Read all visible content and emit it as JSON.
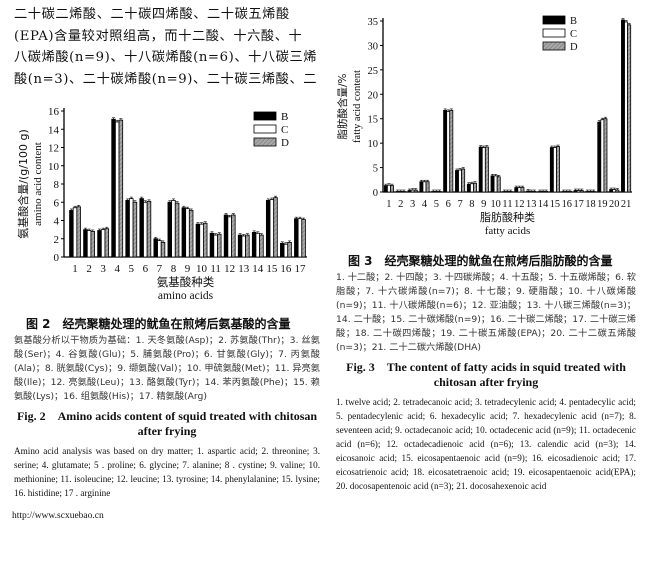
{
  "body_text": [
    "二十碳二烯酸、二十碳四烯酸、二十碳五烯酸",
    "(EPA)含量较对照组高，而十二酸、十六酸、十",
    "八碳烯酸(n=9)、十八碳烯酸(n=6)、十八碳三烯",
    "酸(n=3)、二十碳烯酸(n=9)、二十碳三烯酸、二"
  ],
  "fig2": {
    "caption_cn": "图 2　经壳聚糖处理的鱿鱼在煎烤后氨基酸的含量",
    "note_cn": "氨基酸分析以干物质为基础：1. 天冬氨酸(Asp)；2. 苏氨酸(Thr)；3. 丝氨酸(Ser)；4. 谷氨酸(Glu)；5. 脯氨酸(Pro)；6. 甘氨酸(Gly)；7. 丙氨酸(Ala)；8. 胱氨酸(Cys)；9. 缬氨酸(Val)；10. 甲硫氨酸(Met)；11. 异亮氨酸(Ile)；12. 亮氨酸(Leu)；13. 酪氨酸(Tyr)；14. 苯丙氨酸(Phe)；15. 赖氨酸(Lys)；16. 组氨酸(His)；17. 精氨酸(Arg)",
    "caption_en": "Fig. 2　Amino acids content of squid treated with chitosan after frying",
    "note_en": "Amino acid analysis was based on dry matter; 1. aspartic acid; 2. threonine; 3. serine; 4. glutamate; 5 . proline; 6. glycine; 7. alanine; 8 . cystine; 9. valine; 10. methionine; 11. isoleucine; 12. leucine; 13. tyrosine; 14. phenylalanine; 15. lysine; 16. histidine; 17 . arginine"
  },
  "fig3": {
    "caption_cn": "图 3　经壳聚糖处理的鱿鱼在煎烤后脂肪酸的含量",
    "note_cn": "1. 十二酸；2. 十四酸；3. 十四碳烯酸；4. 十五酸；5. 十五碳烯酸；6. 软脂酸；7. 十六碳烯酸(n=7)；8. 十七酸；9. 硬脂酸；10. 十八碳烯酸(n=9)；11. 十八碳烯酸(n=6)；12. 亚油酸；13. 十八碳三烯酸(n=3)；14. 二十酸；15. 二十碳烯酸(n=9)；16. 二十碳二烯酸；17. 二十碳三烯酸；18. 二十碳四烯酸；19. 二十碳五烯酸(EPA)；20. 二十二碳五烯酸(n=3)；21. 二十二碳六烯酸(DHA)",
    "caption_en": "Fig. 3　The content of fatty acids in squid treated with chitosan after frying",
    "note_en": "1. twelve acid; 2. tetradecanoic acid; 3. tetradecylenic acid; 4. pentadecylic acid; 5. pentadecylenic acid; 6. hexadecylic acid; 7. hexadecylenic acid (n=7); 8. seventeen acid; 9. octadecanoic acid; 10. octadecenic acid (n=9); 11. octadecenic acid (n=6); 12. octadecadienoic acid (n=6); 13. calendic acid (n=3); 14. eicosanoic acid; 15. eicosapentaenoic acid (n=9); 16. eicosadienoic acid; 17. eicosatrienoic acid; 18. eicosatetraenoic acid; 19. eicosapentaenoic acid(EPA); 20. docosapentenoic acid (n=3); 21. docosahexenoic acid"
  },
  "url": "http://www.scxuebao.cn",
  "chart_data": [
    {
      "type": "bar",
      "title": "",
      "xlabel": [
        "氨基酸种类",
        "amino acids"
      ],
      "ylabel": [
        "氨基酸含量/(g/100 g)",
        "amino acid content"
      ],
      "ylim": [
        0,
        16
      ],
      "yticks": [
        0,
        2,
        4,
        6,
        8,
        10,
        12,
        14,
        16
      ],
      "categories": [
        "1",
        "2",
        "3",
        "4",
        "5",
        "6",
        "7",
        "8",
        "9",
        "10",
        "11",
        "12",
        "13",
        "14",
        "15",
        "16",
        "17"
      ],
      "legend_position": "top-right",
      "error_bars": true,
      "series": [
        {
          "name": "B",
          "color": "#000000",
          "values": [
            5.1,
            3.0,
            2.9,
            15.1,
            6.2,
            6.4,
            2.0,
            6.0,
            5.4,
            3.6,
            2.6,
            4.6,
            2.4,
            2.7,
            6.2,
            1.5,
            4.2
          ]
        },
        {
          "name": "C",
          "color": "#ffffff",
          "values": [
            5.4,
            2.9,
            3.0,
            14.8,
            6.4,
            6.0,
            1.8,
            6.2,
            5.3,
            3.6,
            2.4,
            4.4,
            2.3,
            2.6,
            6.3,
            1.4,
            4.2
          ]
        },
        {
          "name": "D",
          "color": "#999999",
          "values": [
            5.5,
            2.8,
            3.1,
            15.0,
            6.0,
            6.1,
            1.6,
            5.9,
            5.1,
            3.7,
            2.5,
            4.6,
            2.4,
            2.4,
            6.5,
            1.6,
            4.1
          ]
        }
      ]
    },
    {
      "type": "bar",
      "title": "",
      "xlabel": [
        "脂肪酸种类",
        "fatty acids"
      ],
      "ylabel": [
        "脂肪酸含量/%",
        "fatty acid content"
      ],
      "ylim": [
        0,
        35
      ],
      "yticks": [
        0,
        5,
        10,
        15,
        20,
        25,
        30,
        35
      ],
      "categories": [
        "1",
        "2",
        "3",
        "4",
        "5",
        "6",
        "7",
        "8",
        "9",
        "10",
        "11",
        "12",
        "13",
        "14",
        "15",
        "16",
        "17",
        "18",
        "19",
        "20",
        "21"
      ],
      "legend_position": "top-right",
      "error_bars": true,
      "series": [
        {
          "name": "B",
          "color": "#000000",
          "values": [
            1.3,
            0.1,
            0.3,
            2.1,
            0.1,
            16.7,
            4.4,
            1.6,
            9.2,
            3.3,
            0.1,
            0.9,
            0.2,
            0.1,
            9.1,
            0.1,
            0.3,
            0.1,
            14.3,
            0.5,
            35.2
          ]
        },
        {
          "name": "C",
          "color": "#ffffff",
          "values": [
            1.4,
            0.1,
            0.4,
            2.1,
            0.1,
            16.5,
            4.5,
            1.7,
            9.1,
            3.3,
            0.1,
            0.9,
            0.1,
            0.1,
            9.1,
            0.1,
            0.3,
            0.1,
            14.8,
            0.5,
            34.8
          ]
        },
        {
          "name": "D",
          "color": "#999999",
          "values": [
            1.3,
            0.1,
            0.4,
            2.1,
            0.1,
            16.7,
            4.7,
            1.8,
            9.2,
            3.1,
            0.1,
            0.9,
            0.1,
            0.1,
            9.3,
            0.1,
            0.3,
            0.1,
            15.0,
            0.4,
            34.2
          ]
        }
      ]
    }
  ]
}
